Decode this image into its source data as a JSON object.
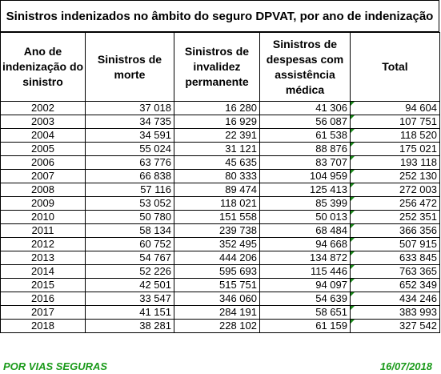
{
  "title": "Sinistros indenizados no âmbito do seguro DPVAT, por ano de indenização",
  "columns": [
    "Ano de indenização do sinistro",
    "Sinistros de morte",
    "Sinistros de invalidez permanente",
    "Sinistros de despesas com assistência médica",
    "Total"
  ],
  "rows": [
    [
      "2002",
      "37 018",
      "16 280",
      "41 306",
      "94 604"
    ],
    [
      "2003",
      "34 735",
      "16 929",
      "56 087",
      "107 751"
    ],
    [
      "2004",
      "34 591",
      "22 391",
      "61 538",
      "118 520"
    ],
    [
      "2005",
      "55 024",
      "31 121",
      "88 876",
      "175 021"
    ],
    [
      "2006",
      "63 776",
      "45 635",
      "83 707",
      "193 118"
    ],
    [
      "2007",
      "66 838",
      "80 333",
      "104 959",
      "252 130"
    ],
    [
      "2008",
      "57 116",
      "89 474",
      "125 413",
      "272 003"
    ],
    [
      "2009",
      "53 052",
      "118 021",
      "85 399",
      "256 472"
    ],
    [
      "2010",
      "50 780",
      "151 558",
      "50 013",
      "252 351"
    ],
    [
      "2011",
      "58 134",
      "239 738",
      "68 484",
      "366 356"
    ],
    [
      "2012",
      "60 752",
      "352 495",
      "94 668",
      "507 915"
    ],
    [
      "2013",
      "54 767",
      "444 206",
      "134 872",
      "633 845"
    ],
    [
      "2014",
      "52 226",
      "595 693",
      "115 446",
      "763 365"
    ],
    [
      "2015",
      "42 501",
      "515 751",
      "94 097",
      "652 349"
    ],
    [
      "2016",
      "33 547",
      "346 060",
      "54 639",
      "434 246"
    ],
    [
      "2017",
      "41 151",
      "284 191",
      "58 651",
      "383 993"
    ],
    [
      "2018",
      "38 281",
      "228 102",
      "61 159",
      "327 542"
    ]
  ],
  "footer": {
    "left": "POR VIAS SEGURAS",
    "right": "16/07/2018"
  },
  "colors": {
    "footer_text": "#1a9a1a",
    "cell_marker": "#1a8a1a"
  }
}
